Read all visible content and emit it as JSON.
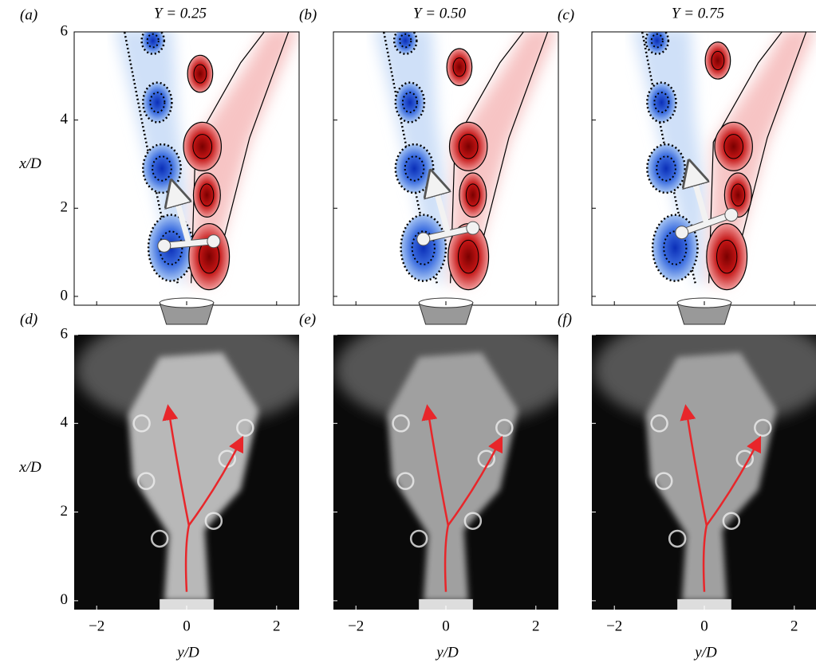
{
  "panels": [
    {
      "label": "(a)",
      "title": "Y = 0.25"
    },
    {
      "label": "(b)",
      "title": "Y = 0.50"
    },
    {
      "label": "(c)",
      "title": "Y = 0.75"
    },
    {
      "label": "(d)"
    },
    {
      "label": "(e)"
    },
    {
      "label": "(f)"
    }
  ],
  "axes": {
    "x_label": "y/D",
    "y_label": "x/D",
    "xlim": [
      -2.5,
      2.5
    ],
    "ylim": [
      -0.2,
      6
    ],
    "xticks": [
      {
        "value": -2,
        "label": "−2"
      },
      0,
      2
    ],
    "yticks": [
      0,
      2,
      4,
      6
    ]
  }
}
